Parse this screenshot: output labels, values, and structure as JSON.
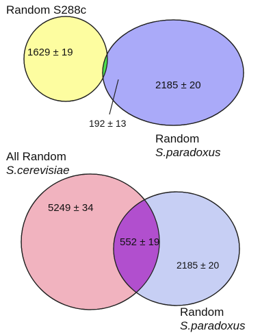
{
  "diagrams": [
    {
      "set_a": {
        "name": "Random S288c",
        "value": "1629 ± 19",
        "color": "#fdfda0"
      },
      "set_b": {
        "name_line1": "Random",
        "name_line2": "S.paradoxus",
        "value": "2185 ± 20",
        "color": "#aaaaf9"
      },
      "overlap": {
        "value": "192 ± 13",
        "color": "#4fdc4f"
      }
    },
    {
      "set_a": {
        "name_line1": "All Random",
        "name_line2": "S.cerevisiae",
        "value": "5249 ± 34",
        "color": "#f1b3bf"
      },
      "set_b": {
        "name_line1": "Random",
        "name_line2": "S.paradoxus",
        "value": "2185 ± 20",
        "color": "#c7cff4"
      },
      "overlap": {
        "value": "552 ± 19",
        "color": "#b14fce"
      }
    }
  ]
}
